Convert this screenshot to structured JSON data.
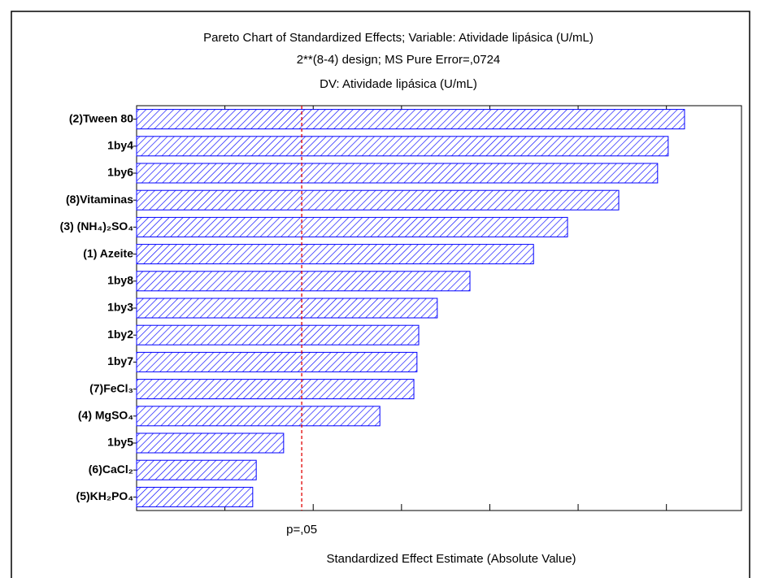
{
  "chart_data": {
    "type": "hbar",
    "title": "Pareto Chart of Standardized Effects; Variable: Atividade lipásica (U/mL)",
    "subtitle": "2**(8-4) design; MS Pure Error=,0724",
    "subtitle2": "DV: Atividade lipásica (U/mL)",
    "x_label": "Standardized Effect Estimate (Absolute Value)",
    "categories": [
      "(2)Tween 80",
      "1by4",
      "1by6",
      "(8)Vitaminas",
      "(3) (NH₄)₂SO₄",
      "(1) Azeite",
      "1by8",
      "1by3",
      "1by2",
      "1by7",
      "(7)FeCl₃",
      "(4) MgSO₄",
      "1by5",
      "(6)CaCl₂",
      "(5)KH₂PO₄"
    ],
    "values": [
      12.41,
      12.04,
      11.8,
      10.92,
      9.76,
      8.99,
      7.55,
      6.81,
      6.39,
      6.35,
      6.28,
      5.51,
      3.33,
      2.71,
      2.63
    ],
    "color": "#0000ff",
    "xlim": [
      0,
      13.7
    ],
    "xticks": [
      2,
      4,
      6,
      8,
      10,
      12
    ],
    "reference_line": {
      "value": 3.74,
      "label": "p=,05",
      "color": "#e00000"
    }
  }
}
